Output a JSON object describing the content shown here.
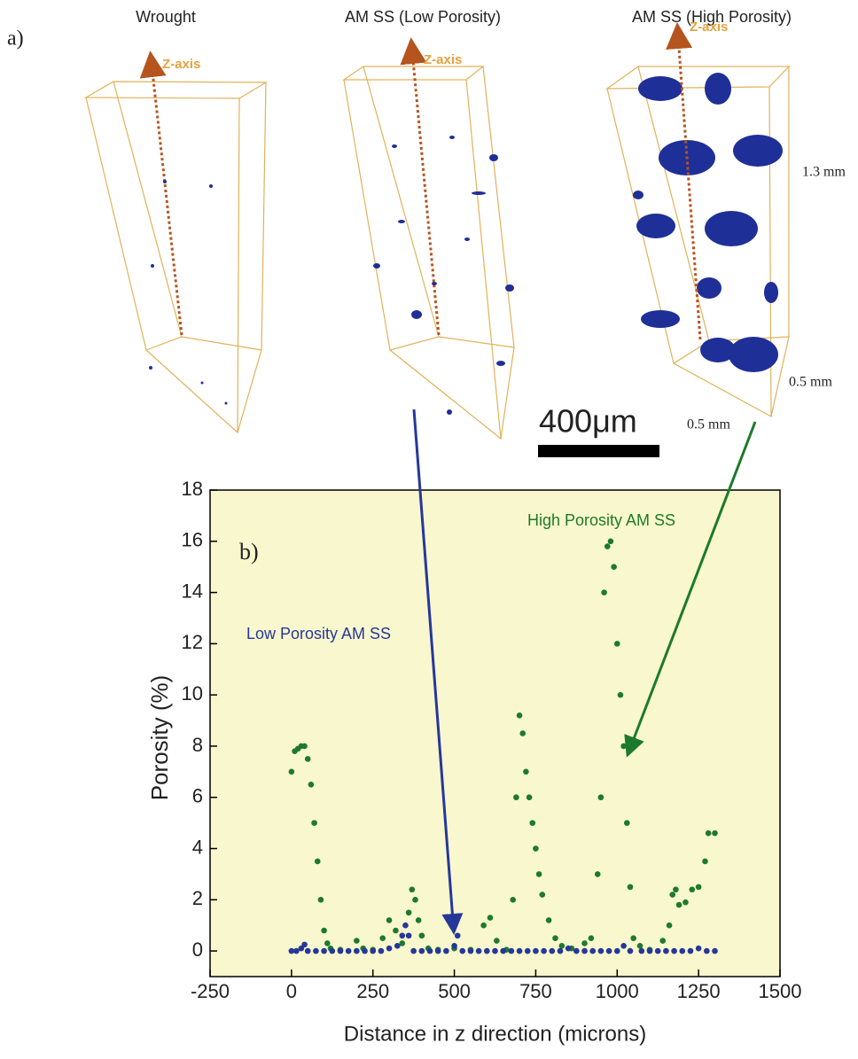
{
  "figure_a": {
    "label": "a)",
    "titles": [
      "Wrought",
      "AM SS (Low Porosity)",
      "AM SS (High Porosity)"
    ],
    "axis_label": "Z-axis",
    "dimensions": [
      "1.3 mm",
      "0.5 mm",
      "0.5 mm"
    ],
    "scale_bar": "400μm"
  },
  "chart_data": {
    "type": "scatter",
    "panel_label": "b)",
    "x_label": "Distance in z direction (microns)",
    "y_label": "Porosity (%)",
    "xlim": [
      -250,
      1500
    ],
    "xticks": [
      -250,
      0,
      250,
      500,
      750,
      1000,
      1250,
      1500
    ],
    "ylim": [
      -1,
      18
    ],
    "yticks": [
      0,
      2,
      4,
      6,
      8,
      10,
      12,
      14,
      16,
      18
    ],
    "background": "#f9f7cd",
    "series": [
      {
        "name": "High Porosity AM SS",
        "color": "#1d7a2c",
        "x": [
          0,
          10,
          20,
          30,
          40,
          50,
          60,
          70,
          80,
          90,
          100,
          110,
          120,
          150,
          200,
          220,
          250,
          280,
          300,
          320,
          340,
          360,
          370,
          380,
          390,
          400,
          420,
          450,
          500,
          550,
          590,
          610,
          630,
          660,
          680,
          690,
          700,
          710,
          720,
          730,
          740,
          750,
          760,
          770,
          790,
          810,
          830,
          860,
          900,
          920,
          940,
          950,
          960,
          970,
          980,
          990,
          1000,
          1010,
          1020,
          1030,
          1040,
          1050,
          1070,
          1100,
          1140,
          1160,
          1170,
          1180,
          1190,
          1210,
          1230,
          1250,
          1270,
          1280,
          1300
        ],
        "values": [
          7,
          7.8,
          7.9,
          8,
          8,
          7.5,
          6.5,
          5,
          3.5,
          2,
          0.8,
          0.3,
          0.1,
          0.05,
          0.4,
          0.1,
          0.05,
          0.5,
          1.2,
          0.8,
          0.3,
          1.5,
          2.4,
          2,
          1.2,
          0.6,
          0.1,
          0.05,
          0.1,
          0.05,
          1,
          1.3,
          0.4,
          0.05,
          2,
          6,
          9.2,
          8.5,
          7,
          6,
          5,
          4,
          3,
          2.2,
          1.2,
          0.5,
          0.2,
          0.1,
          0.3,
          0.5,
          3,
          6,
          14,
          15.8,
          16,
          15,
          12,
          10,
          8,
          5,
          2.5,
          0.5,
          0.2,
          0.05,
          0.4,
          1,
          2.2,
          2.4,
          1.8,
          1.9,
          2.4,
          2.5,
          3.5,
          4.6,
          4.6
        ]
      },
      {
        "name": "Low Porosity AM SS",
        "color": "#25389a",
        "x": [
          0,
          15,
          30,
          40,
          50,
          75,
          100,
          125,
          150,
          175,
          200,
          225,
          250,
          275,
          300,
          325,
          340,
          350,
          360,
          375,
          400,
          425,
          450,
          475,
          500,
          510,
          525,
          550,
          575,
          600,
          625,
          650,
          675,
          700,
          725,
          750,
          775,
          800,
          825,
          850,
          875,
          900,
          925,
          950,
          975,
          1000,
          1020,
          1040,
          1075,
          1100,
          1125,
          1150,
          1175,
          1200,
          1225,
          1250,
          1275,
          1300
        ],
        "values": [
          0,
          0,
          0.1,
          0.25,
          0,
          0,
          0,
          0,
          0,
          0,
          0,
          0,
          0,
          0,
          0.1,
          0.2,
          0.6,
          1,
          0.6,
          0,
          0,
          0,
          0,
          0,
          0.2,
          0.6,
          0,
          0,
          0,
          0,
          0,
          0,
          0,
          0,
          0,
          0,
          0,
          0,
          0,
          0.1,
          0,
          0,
          0,
          0,
          0,
          0,
          0.2,
          0,
          0,
          0,
          0,
          0,
          0,
          0,
          0,
          0.1,
          0,
          0
        ]
      }
    ]
  }
}
